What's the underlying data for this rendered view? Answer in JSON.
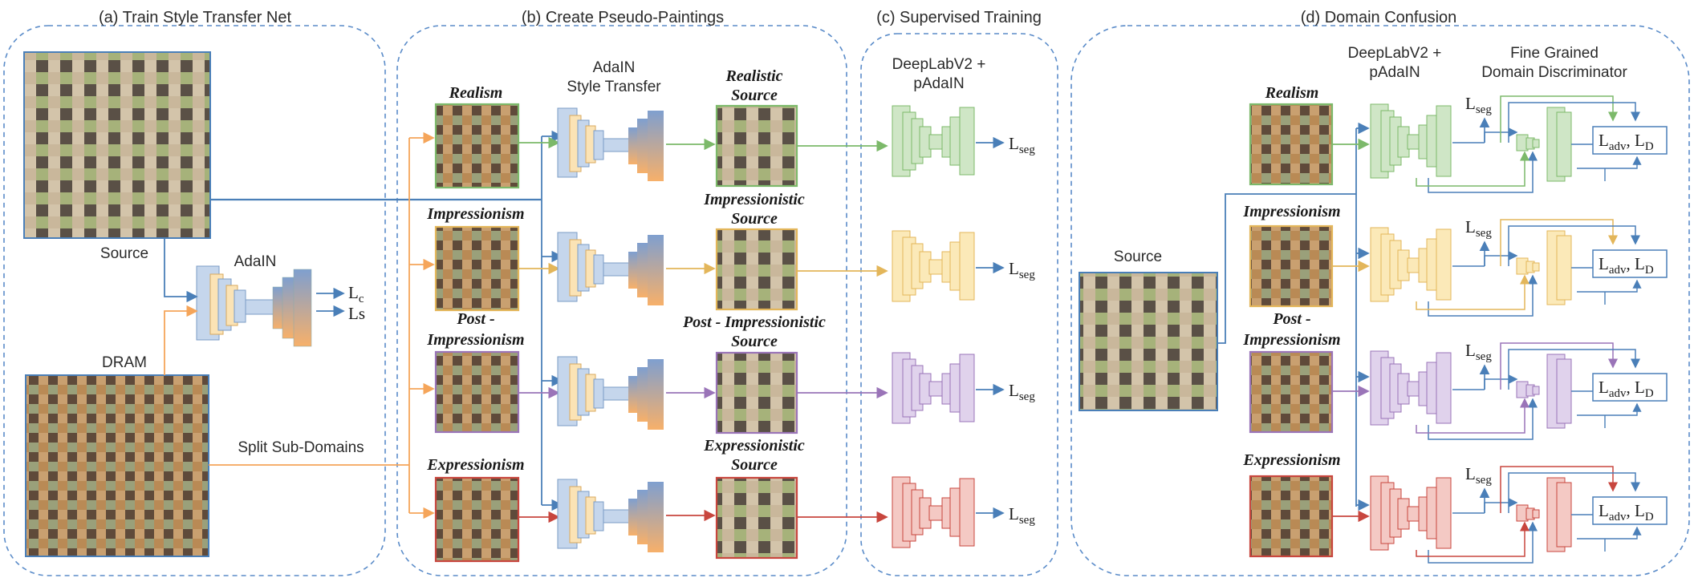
{
  "panels": {
    "a": {
      "title": "(a) Train Style Transfer Net"
    },
    "b": {
      "title": "(b) Create Pseudo-Paintings"
    },
    "c": {
      "title": "(c) Supervised Training"
    },
    "d": {
      "title": "(d) Domain Confusion"
    }
  },
  "panel_a": {
    "source_label": "Source",
    "dram_label": "DRAM",
    "adain_label": "AdaIN",
    "loss_c": "L",
    "loss_c_sub": "c",
    "loss_s": "Ls",
    "split_label": "Split Sub-Domains"
  },
  "panel_b": {
    "adain_title_1": "AdaIN",
    "adain_title_2": "Style Transfer",
    "styles": [
      "Realism",
      "Impressionism",
      "Post -",
      "Impressionism",
      "Expressionism"
    ],
    "outputs": [
      "Realistic",
      "Source",
      "Impressionistic",
      "Source",
      "Post - Impressionistic",
      "Source",
      "Expressionistic",
      "Source"
    ]
  },
  "panel_c": {
    "title_1": "DeepLabV2 +",
    "title_2": "pAdaIN",
    "loss": "L",
    "loss_sub": "seg"
  },
  "panel_d": {
    "net_title_1": "DeepLabV2 +",
    "net_title_2": "pAdaIN",
    "disc_title_1": "Fine Grained",
    "disc_title_2": "Domain Discriminator",
    "source_label": "Source",
    "styles": [
      "Realism",
      "Impressionism",
      "Post -",
      "Impressionism",
      "Expressionism"
    ],
    "lseg": "L",
    "lseg_sub": "seg",
    "ladv": "L",
    "ladv_sub": "adv",
    "ld_sep": ", L",
    "ld_sub": "D"
  },
  "colors": {
    "realism": "#7cb96a",
    "impressionism": "#e3b65a",
    "post_impressionism": "#9a74b8",
    "expressionism": "#c8463e",
    "source": "#4a7fb8",
    "dram": "#f5a55a",
    "dashed": "#5b8cc9"
  }
}
